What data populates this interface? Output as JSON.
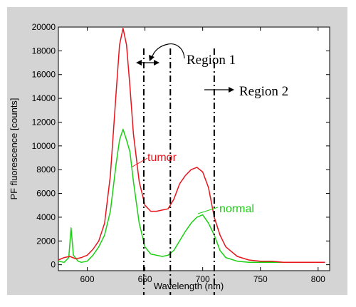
{
  "chart_data": {
    "type": "line",
    "title": "",
    "xlabel": "Wavelength (nm)",
    "ylabel": "PF fluorescence [counts]",
    "xlim": [
      575,
      810
    ],
    "ylim": [
      -500,
      20000
    ],
    "xticks": [
      600,
      650,
      700,
      750,
      800
    ],
    "yticks": [
      0,
      2000,
      4000,
      6000,
      8000,
      10000,
      12000,
      14000,
      16000,
      18000,
      20000
    ],
    "grid": false,
    "series": [
      {
        "name": "tumor",
        "color": "#e8141c",
        "x": [
          575,
          580,
          585,
          590,
          595,
          600,
          605,
          610,
          615,
          620,
          625,
          628,
          631,
          634,
          637,
          640,
          645,
          650,
          655,
          660,
          665,
          670,
          675,
          680,
          685,
          690,
          695,
          700,
          705,
          710,
          715,
          720,
          730,
          740,
          750,
          760,
          770,
          780,
          790,
          800,
          806
        ],
        "values": [
          400,
          600,
          700,
          500,
          600,
          800,
          1300,
          2000,
          3500,
          7500,
          14500,
          18500,
          19900,
          18500,
          15000,
          11000,
          7000,
          5000,
          4500,
          4500,
          4600,
          4700,
          5500,
          6800,
          7500,
          8000,
          8200,
          7800,
          6500,
          4000,
          2500,
          1500,
          700,
          400,
          300,
          300,
          200,
          200,
          200,
          200,
          200
        ]
      },
      {
        "name": "normal",
        "color": "#1bd012",
        "x": [
          575,
          580,
          584,
          586,
          588,
          592,
          595,
          600,
          605,
          610,
          615,
          620,
          625,
          628,
          631,
          634,
          637,
          640,
          645,
          650,
          655,
          660,
          665,
          670,
          675,
          680,
          685,
          690,
          695,
          700,
          705,
          710,
          715,
          720,
          730,
          740,
          750,
          760,
          770,
          780,
          790,
          800,
          806
        ],
        "values": [
          300,
          200,
          600,
          3100,
          800,
          300,
          200,
          300,
          800,
          1500,
          2500,
          4500,
          8500,
          10500,
          11400,
          10500,
          9500,
          7000,
          3500,
          1500,
          900,
          800,
          700,
          800,
          1200,
          2000,
          2800,
          3500,
          4000,
          4200,
          3500,
          2500,
          1200,
          600,
          300,
          200,
          200,
          200,
          200,
          200,
          200,
          200,
          200
        ]
      }
    ],
    "vertical_lines": [
      649,
      672,
      710
    ],
    "annotations": {
      "region1": "Region 1",
      "region2": "Region 2",
      "tumor_label": "tumor",
      "normal_label": "normal"
    }
  },
  "colors": {
    "frame_bg": "#d4d4d4",
    "plot_bg": "#ffffff",
    "tumor": "#e8141c",
    "normal": "#1bd012",
    "dashdot": "#000000"
  }
}
